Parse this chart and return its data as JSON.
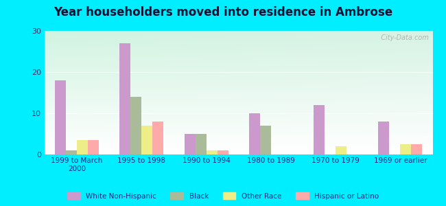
{
  "title": "Year householders moved into residence in Ambrose",
  "categories": [
    "1999 to March\n2000",
    "1995 to 1998",
    "1990 to 1994",
    "1980 to 1989",
    "1970 to 1979",
    "1969 or earlier"
  ],
  "series": {
    "White Non-Hispanic": [
      18,
      27,
      5,
      10,
      12,
      8
    ],
    "Black": [
      1,
      14,
      5,
      7,
      0,
      0
    ],
    "Other Race": [
      3.5,
      7,
      1,
      0,
      2,
      2.5
    ],
    "Hispanic or Latino": [
      3.5,
      8,
      1,
      0,
      0,
      2.5
    ]
  },
  "colors": {
    "White Non-Hispanic": "#cc99cc",
    "Black": "#aabb99",
    "Other Race": "#eeee88",
    "Hispanic or Latino": "#ffaaaa"
  },
  "ylim": [
    0,
    30
  ],
  "yticks": [
    0,
    10,
    20,
    30
  ],
  "background_outer": "#00eeff",
  "bar_width": 0.17,
  "legend_labels": [
    "White Non-Hispanic",
    "Black",
    "Other Race",
    "Hispanic or Latino"
  ],
  "watermark": "  City-Data.com"
}
